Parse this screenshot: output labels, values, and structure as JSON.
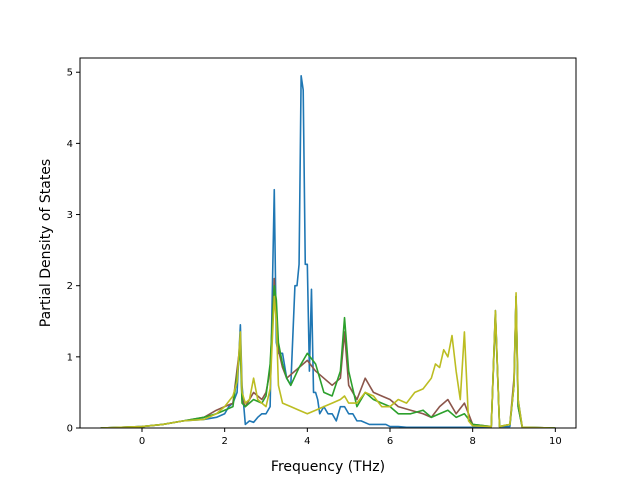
{
  "chart_data": {
    "type": "line",
    "xlabel": "Frequency (THz)",
    "ylabel": "Partial Density of States",
    "xlim": [
      -1.5,
      10.5
    ],
    "ylim": [
      0,
      5.2
    ],
    "xticks": [
      0,
      2,
      4,
      6,
      8,
      10
    ],
    "yticks": [
      0,
      1,
      2,
      3,
      4,
      5
    ],
    "grid": false,
    "series": [
      {
        "color": "#1f77b4",
        "x": [
          -1,
          0,
          0.5,
          1,
          1.5,
          1.8,
          2.0,
          2.1,
          2.2,
          2.3,
          2.38,
          2.42,
          2.5,
          2.6,
          2.7,
          2.8,
          2.9,
          3.0,
          3.1,
          3.2,
          3.25,
          3.3,
          3.4,
          3.5,
          3.6,
          3.7,
          3.75,
          3.8,
          3.85,
          3.9,
          3.95,
          4.0,
          4.05,
          4.1,
          4.15,
          4.2,
          4.25,
          4.3,
          4.4,
          4.5,
          4.6,
          4.7,
          4.8,
          4.9,
          5.0,
          5.1,
          5.2,
          5.3,
          5.5,
          5.7,
          5.9,
          6.0,
          6.2,
          6.4,
          6.6,
          7.0,
          7.5,
          8.0,
          8.45,
          8.55,
          8.65,
          8.9,
          9.0,
          9.05,
          9.1,
          9.2,
          10.0
        ],
        "y": [
          0,
          0.02,
          0.05,
          0.1,
          0.12,
          0.15,
          0.2,
          0.3,
          0.35,
          0.5,
          1.45,
          0.6,
          0.05,
          0.1,
          0.08,
          0.15,
          0.2,
          0.2,
          0.3,
          3.35,
          1.2,
          1.05,
          1.05,
          0.7,
          0.6,
          2.0,
          2.0,
          2.3,
          4.95,
          4.75,
          2.3,
          2.3,
          0.8,
          1.95,
          0.5,
          0.5,
          0.4,
          0.2,
          0.3,
          0.2,
          0.2,
          0.1,
          0.3,
          0.3,
          0.2,
          0.2,
          0.1,
          0.1,
          0.05,
          0.05,
          0.05,
          0.02,
          0.02,
          0.01,
          0.01,
          0.01,
          0.01,
          0.01,
          0.02,
          1.65,
          0.02,
          0.02,
          0.6,
          1.85,
          0.4,
          0.01,
          0
        ]
      },
      {
        "color": "#8c564b",
        "x": [
          -1,
          0,
          0.5,
          1,
          1.5,
          1.8,
          2.0,
          2.2,
          2.38,
          2.42,
          2.5,
          2.7,
          2.9,
          3.0,
          3.1,
          3.2,
          3.25,
          3.3,
          3.4,
          3.5,
          3.6,
          3.8,
          4.0,
          4.2,
          4.4,
          4.6,
          4.8,
          4.9,
          5.0,
          5.2,
          5.4,
          5.6,
          5.8,
          6.0,
          6.2,
          6.5,
          6.8,
          7.0,
          7.2,
          7.4,
          7.6,
          7.8,
          8.0,
          8.45,
          8.55,
          8.65,
          8.9,
          9.0,
          9.05,
          9.1,
          9.2,
          10.0
        ],
        "y": [
          0,
          0.02,
          0.05,
          0.1,
          0.15,
          0.25,
          0.3,
          0.35,
          1.2,
          0.4,
          0.3,
          0.5,
          0.4,
          0.5,
          0.8,
          2.1,
          1.6,
          1.1,
          0.85,
          0.7,
          0.75,
          0.85,
          0.95,
          0.8,
          0.7,
          0.6,
          0.7,
          1.35,
          0.6,
          0.4,
          0.7,
          0.5,
          0.45,
          0.4,
          0.3,
          0.25,
          0.2,
          0.15,
          0.3,
          0.4,
          0.2,
          0.35,
          0.05,
          0.02,
          1.6,
          0.02,
          0.05,
          0.7,
          1.85,
          0.3,
          0.01,
          0
        ]
      },
      {
        "color": "#2ca02c",
        "x": [
          -1,
          0,
          0.5,
          1,
          1.5,
          1.8,
          2.0,
          2.2,
          2.38,
          2.42,
          2.5,
          2.7,
          2.9,
          3.0,
          3.1,
          3.2,
          3.25,
          3.3,
          3.4,
          3.5,
          3.6,
          3.8,
          4.0,
          4.2,
          4.4,
          4.6,
          4.8,
          4.9,
          5.0,
          5.2,
          5.4,
          5.6,
          5.8,
          6.0,
          6.2,
          6.5,
          6.8,
          7.0,
          7.2,
          7.4,
          7.6,
          7.8,
          8.0,
          8.45,
          8.55,
          8.65,
          8.9,
          9.0,
          9.05,
          9.1,
          9.2,
          10.0
        ],
        "y": [
          0,
          0.02,
          0.05,
          0.1,
          0.15,
          0.2,
          0.25,
          0.3,
          1.1,
          0.35,
          0.3,
          0.4,
          0.35,
          0.45,
          0.9,
          2.0,
          1.8,
          1.2,
          0.9,
          0.7,
          0.6,
          0.85,
          1.05,
          0.9,
          0.5,
          0.45,
          0.8,
          1.55,
          0.8,
          0.3,
          0.5,
          0.4,
          0.35,
          0.3,
          0.2,
          0.2,
          0.25,
          0.15,
          0.2,
          0.25,
          0.15,
          0.2,
          0.05,
          0.02,
          1.6,
          0.02,
          0.05,
          0.6,
          1.85,
          0.3,
          0.01,
          0
        ]
      },
      {
        "color": "#bcbd22",
        "x": [
          -1,
          0,
          0.5,
          1,
          1.5,
          1.8,
          2.0,
          2.2,
          2.3,
          2.38,
          2.42,
          2.5,
          2.6,
          2.7,
          2.8,
          2.9,
          3.0,
          3.1,
          3.2,
          3.25,
          3.3,
          3.4,
          3.6,
          3.8,
          4.0,
          4.2,
          4.4,
          4.6,
          4.8,
          4.9,
          5.0,
          5.2,
          5.4,
          5.6,
          5.8,
          6.0,
          6.2,
          6.4,
          6.6,
          6.8,
          7.0,
          7.1,
          7.2,
          7.3,
          7.4,
          7.5,
          7.6,
          7.7,
          7.8,
          7.9,
          8.0,
          8.45,
          8.55,
          8.65,
          8.9,
          9.0,
          9.05,
          9.1,
          9.2,
          10.0
        ],
        "y": [
          0,
          0.02,
          0.05,
          0.1,
          0.12,
          0.2,
          0.3,
          0.45,
          0.65,
          1.35,
          0.5,
          0.35,
          0.4,
          0.7,
          0.4,
          0.35,
          0.3,
          0.55,
          1.85,
          1.5,
          0.6,
          0.35,
          0.3,
          0.25,
          0.2,
          0.25,
          0.3,
          0.35,
          0.4,
          0.45,
          0.35,
          0.35,
          0.5,
          0.45,
          0.3,
          0.3,
          0.4,
          0.35,
          0.5,
          0.55,
          0.7,
          0.9,
          0.85,
          1.1,
          1.0,
          1.3,
          0.8,
          0.4,
          1.35,
          0.1,
          0.03,
          0.02,
          1.65,
          0.02,
          0.05,
          0.6,
          1.9,
          0.4,
          0.01,
          0
        ]
      }
    ]
  }
}
